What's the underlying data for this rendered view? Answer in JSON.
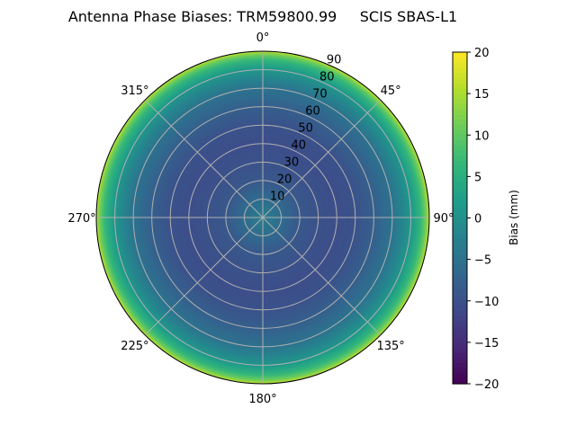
{
  "chart_data": {
    "type": "heatmap",
    "projection": "polar",
    "title": "Antenna Phase Biases: TRM59800.99     SCIS SBAS-L1",
    "theta_ticks": [
      "0°",
      "45°",
      "90°",
      "135°",
      "180°",
      "225°",
      "270°",
      "315°"
    ],
    "r_ticks": [
      "10",
      "20",
      "30",
      "40",
      "50",
      "60",
      "70",
      "80",
      "90"
    ],
    "r_range": [
      0,
      90
    ],
    "theta_zero": "north",
    "theta_direction": "clockwise",
    "grid": true,
    "colormap": "viridis",
    "colorbar": {
      "label": "Bias (mm)",
      "range": [
        -20,
        20
      ],
      "ticks": [
        "20",
        "15",
        "10",
        "5",
        "0",
        "−5",
        "−10",
        "−15",
        "−20"
      ],
      "tick_values": [
        20,
        15,
        10,
        5,
        0,
        -5,
        -10,
        -15,
        -20
      ]
    },
    "radial_profile": {
      "r": [
        0,
        10,
        20,
        30,
        40,
        50,
        60,
        70,
        75,
        80,
        85,
        88,
        90
      ],
      "bias": [
        -3,
        -6,
        -9,
        -10,
        -10.5,
        -10,
        -8,
        -5,
        -2,
        1,
        6,
        11,
        16
      ]
    },
    "note_azimuthal_variation": "none"
  }
}
